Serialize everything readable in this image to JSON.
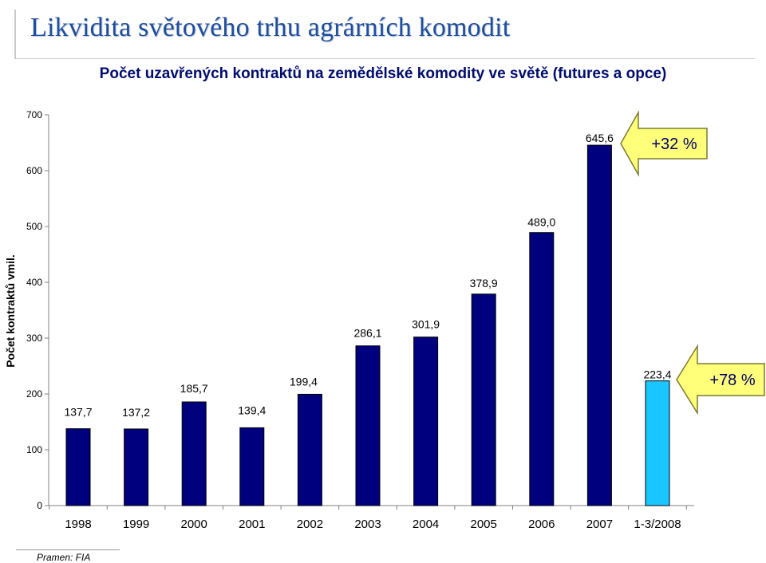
{
  "slide": {
    "title": "Likvidita světového trhu agrárních komodit",
    "source": "Pramen: FIA"
  },
  "chart_data": {
    "type": "bar",
    "title": "Počet uzavřených kontraktů na zemědělské komodity ve světě (futures a opce)",
    "xlabel": "",
    "ylabel": "Počet kontraktů vmil.",
    "ylim": [
      0,
      700
    ],
    "yticks": [
      0,
      100,
      200,
      300,
      400,
      500,
      600,
      700
    ],
    "categories": [
      "1998",
      "1999",
      "2000",
      "2001",
      "2002",
      "2003",
      "2004",
      "2005",
      "2006",
      "2007",
      "1-3/2008"
    ],
    "values": [
      137.7,
      137.2,
      185.7,
      139.4,
      199.4,
      286.1,
      301.9,
      378.9,
      489.0,
      645.6,
      223.4
    ],
    "value_labels": [
      "137,7",
      "137,2",
      "185,7",
      "139,4",
      "199,4",
      "286,1",
      "301,9",
      "378,9",
      "489,0",
      "645,6",
      "223,4"
    ],
    "bar_colors": [
      "#00007f",
      "#00007f",
      "#00007f",
      "#00007f",
      "#00007f",
      "#00007f",
      "#00007f",
      "#00007f",
      "#00007f",
      "#00007f",
      "#19c6ff"
    ],
    "grid": false,
    "annotations": [
      {
        "text": "+32 %",
        "points_to": "2007",
        "fill": "#ffff7a",
        "stroke": "#7a7a30"
      },
      {
        "text": "+78 %",
        "points_to": "1-3/2008",
        "fill": "#ffff7a",
        "stroke": "#7a7a30"
      }
    ]
  }
}
